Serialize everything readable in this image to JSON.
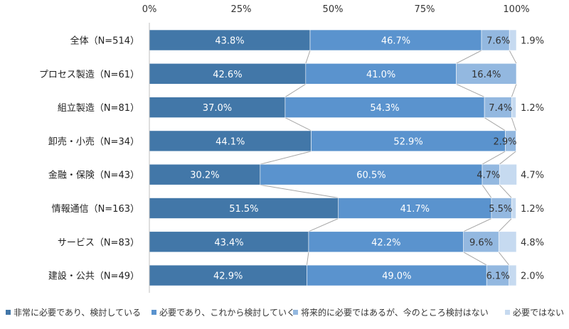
{
  "chart_data": {
    "type": "bar",
    "orientation": "horizontal",
    "stacked": true,
    "title": "",
    "xlabel": "",
    "ylabel": "",
    "xlim": [
      0,
      100
    ],
    "x_ticks": [
      "0%",
      "25%",
      "50%",
      "75%",
      "100%"
    ],
    "x_tick_values": [
      0,
      25,
      50,
      75,
      100
    ],
    "grid": false,
    "legend_position": "bottom",
    "connector_lines": true,
    "categories": [
      "全体（N=514）",
      "プロセス製造（N=61）",
      "組立製造（N=81）",
      "卸売・小売（N=34）",
      "金融・保険（N=43）",
      "情報通信（N=163）",
      "サービス（N=83）",
      "建設・公共（N=49）"
    ],
    "series": [
      {
        "name": "非常に必要であり、検討している",
        "color": "#4277a8",
        "values": [
          43.8,
          42.6,
          37.0,
          44.1,
          30.2,
          51.5,
          43.4,
          42.9
        ],
        "labels": [
          "43.8%",
          "42.6%",
          "37.0%",
          "44.1%",
          "30.2%",
          "51.5%",
          "43.4%",
          "42.9%"
        ]
      },
      {
        "name": "必要であり、これから検討していく",
        "color": "#5a93ce",
        "values": [
          46.7,
          41.0,
          54.3,
          52.9,
          60.5,
          41.7,
          42.2,
          49.0
        ],
        "labels": [
          "46.7%",
          "41.0%",
          "54.3%",
          "52.9%",
          "60.5%",
          "41.7%",
          "42.2%",
          "49.0%"
        ]
      },
      {
        "name": "将来的に必要ではあるが、今のところ検討はない",
        "color": "#93b8e0",
        "values": [
          7.6,
          16.4,
          7.4,
          2.9,
          4.7,
          5.5,
          9.6,
          6.1
        ],
        "labels": [
          "7.6%",
          "16.4%",
          "7.4%",
          "2.9%",
          "4.7%",
          "5.5%",
          "9.6%",
          "6.1%"
        ]
      },
      {
        "name": "必要ではない",
        "color": "#c6daf0",
        "values": [
          1.9,
          0.0,
          1.2,
          0.0,
          4.7,
          1.2,
          4.8,
          2.0
        ],
        "labels": [
          "1.9%",
          "",
          "1.2%",
          "",
          "4.7%",
          "1.2%",
          "4.8%",
          "2.0%"
        ]
      }
    ]
  }
}
